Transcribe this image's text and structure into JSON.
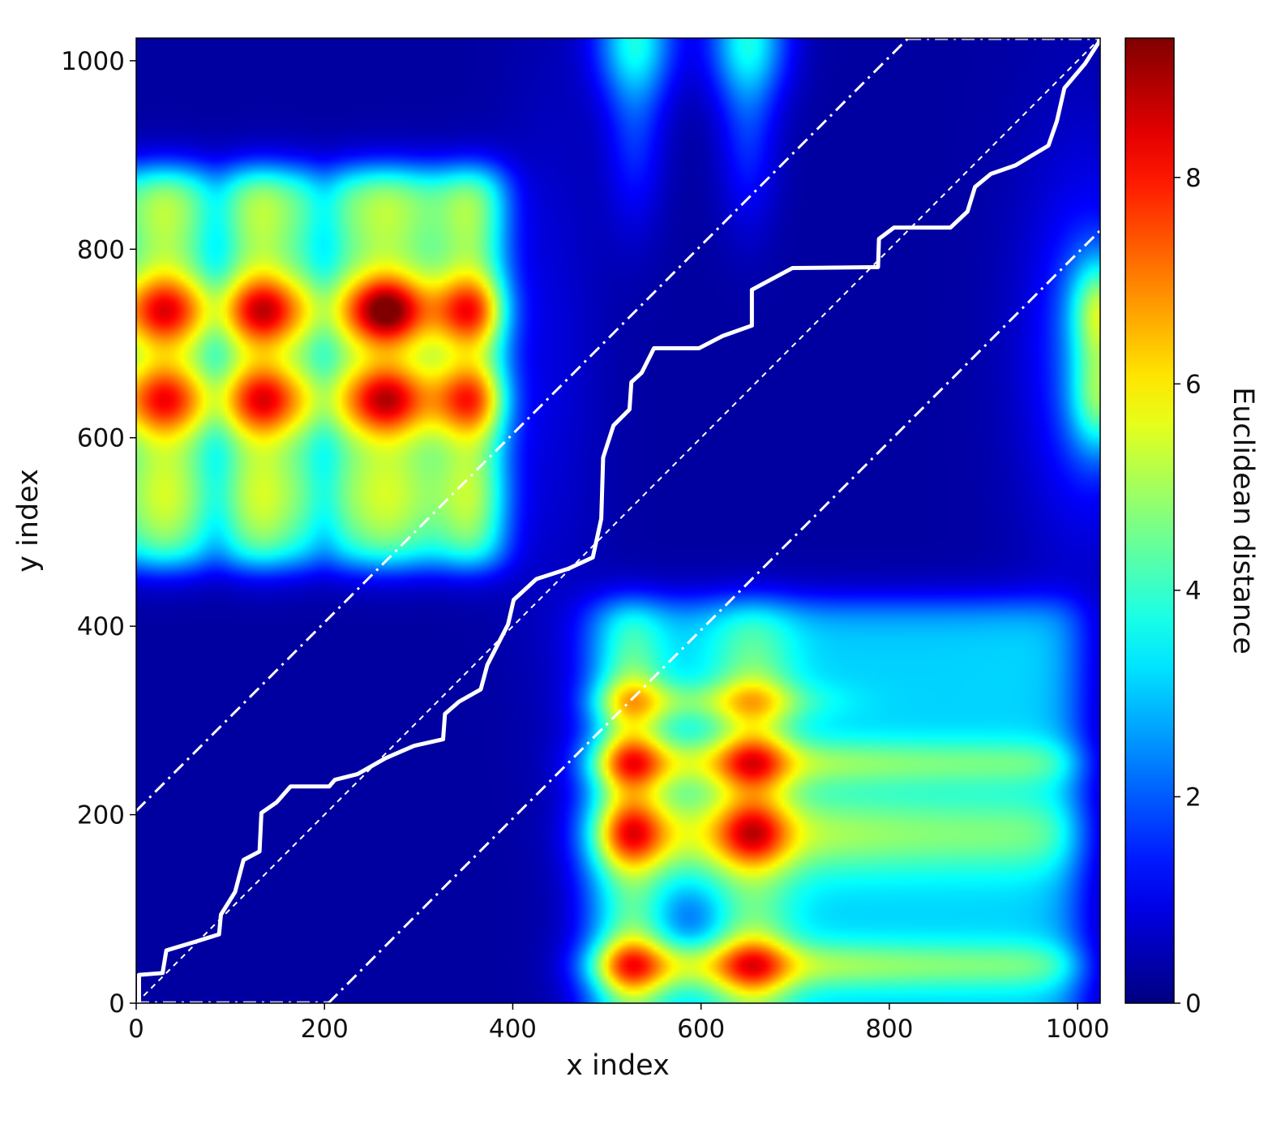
{
  "chart_data": {
    "type": "heatmap",
    "title": "",
    "xlabel": "x index",
    "ylabel": "y index",
    "colorbar_label": "Euclidean distance",
    "colormap": "jet",
    "xlim": [
      0,
      1024
    ],
    "ylim": [
      0,
      1024
    ],
    "clim": [
      0,
      9.35
    ],
    "xticks": [
      "0",
      "200",
      "400",
      "600",
      "800",
      "1000"
    ],
    "yticks": [
      "0",
      "200",
      "400",
      "600",
      "800",
      "1000"
    ],
    "colorbar_ticks": [
      "0",
      "2",
      "4",
      "6",
      "8"
    ],
    "grid": false,
    "high_regions": [
      {
        "x": [
          0,
          392
        ],
        "y": [
          465,
          885
        ],
        "base": 3.6
      },
      {
        "x": [
          478,
          1000
        ],
        "y": [
          0,
          425
        ],
        "base": 2.8
      }
    ],
    "peaks": [
      {
        "x": 30,
        "y": 735,
        "value": 8.0
      },
      {
        "x": 135,
        "y": 735,
        "value": 8.3
      },
      {
        "x": 265,
        "y": 735,
        "value": 9.3
      },
      {
        "x": 355,
        "y": 735,
        "value": 8.0
      },
      {
        "x": 30,
        "y": 640,
        "value": 7.8
      },
      {
        "x": 135,
        "y": 640,
        "value": 8.0
      },
      {
        "x": 265,
        "y": 640,
        "value": 8.4
      },
      {
        "x": 355,
        "y": 640,
        "value": 7.8
      },
      {
        "x": 525,
        "y": 40,
        "value": 8.2
      },
      {
        "x": 655,
        "y": 40,
        "value": 8.2
      },
      {
        "x": 525,
        "y": 180,
        "value": 8.4
      },
      {
        "x": 655,
        "y": 180,
        "value": 8.5
      },
      {
        "x": 525,
        "y": 255,
        "value": 8.3
      },
      {
        "x": 655,
        "y": 255,
        "value": 8.3
      },
      {
        "x": 525,
        "y": 320,
        "value": 7.5
      },
      {
        "x": 655,
        "y": 320,
        "value": 7.2
      }
    ],
    "warping_path": {
      "color": "#ffffff",
      "points": [
        [
          3,
          0
        ],
        [
          3,
          30
        ],
        [
          28,
          32
        ],
        [
          32,
          56
        ],
        [
          62,
          65
        ],
        [
          88,
          73
        ],
        [
          90,
          94
        ],
        [
          105,
          118
        ],
        [
          114,
          152
        ],
        [
          131,
          161
        ],
        [
          133,
          202
        ],
        [
          149,
          213
        ],
        [
          164,
          230
        ],
        [
          205,
          230
        ],
        [
          211,
          237
        ],
        [
          235,
          243
        ],
        [
          265,
          260
        ],
        [
          295,
          273
        ],
        [
          326,
          280
        ],
        [
          328,
          307
        ],
        [
          343,
          320
        ],
        [
          366,
          333
        ],
        [
          373,
          359
        ],
        [
          395,
          402
        ],
        [
          401,
          428
        ],
        [
          425,
          450
        ],
        [
          459,
          461
        ],
        [
          485,
          473
        ],
        [
          494,
          514
        ],
        [
          496,
          579
        ],
        [
          507,
          613
        ],
        [
          524,
          630
        ],
        [
          526,
          659
        ],
        [
          537,
          669
        ],
        [
          550,
          695
        ],
        [
          598,
          695
        ],
        [
          623,
          708
        ],
        [
          654,
          719
        ],
        [
          654,
          757
        ],
        [
          697,
          780
        ],
        [
          788,
          781
        ],
        [
          789,
          811
        ],
        [
          805,
          823
        ],
        [
          865,
          823
        ],
        [
          883,
          840
        ],
        [
          891,
          866
        ],
        [
          908,
          880
        ],
        [
          934,
          889
        ],
        [
          969,
          910
        ],
        [
          978,
          936
        ],
        [
          986,
          971
        ],
        [
          1008,
          997
        ],
        [
          1024,
          1022
        ]
      ]
    },
    "diagonal": {
      "style": "dashed",
      "color": "#ffffff"
    },
    "window_band": {
      "offset": 204,
      "style": "dash-dot",
      "color": "#ffffff"
    }
  }
}
